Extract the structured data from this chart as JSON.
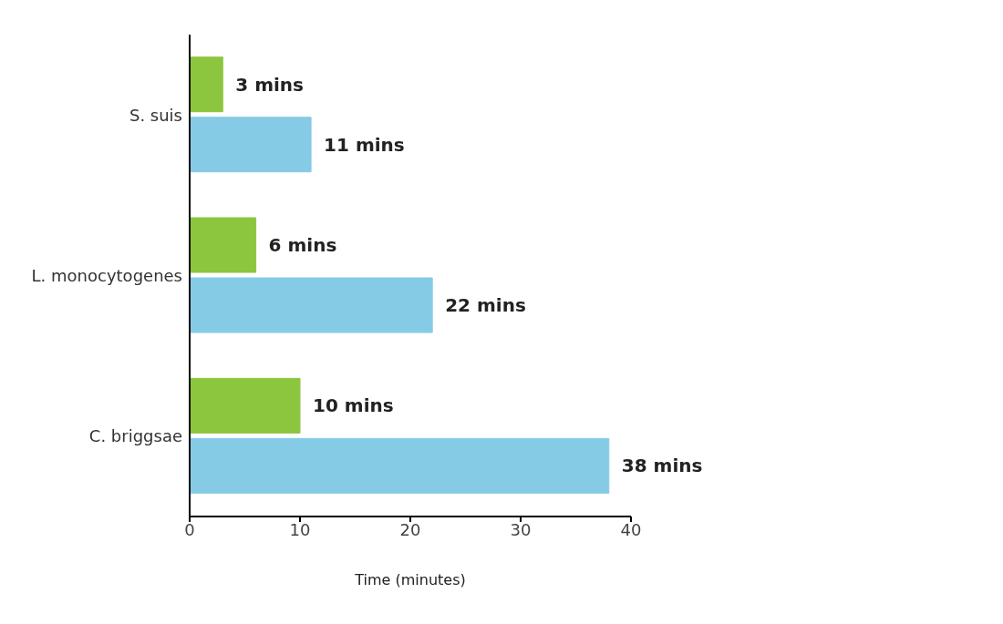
{
  "chart_data": {
    "type": "bar",
    "orientation": "horizontal",
    "xlabel": "Time (minutes)",
    "categories": [
      "S. suis",
      "L. monocytogenes",
      "C. briggsae"
    ],
    "series": [
      {
        "color": "#8cc63e",
        "values": [
          3,
          6,
          10
        ],
        "value_labels": [
          "3 mins",
          "6 mins",
          "10 mins"
        ]
      },
      {
        "color": "#86cbe6",
        "values": [
          11,
          22,
          38
        ],
        "value_labels": [
          "11 mins",
          "22 mins",
          "38 mins"
        ]
      }
    ],
    "xlim": [
      0,
      40
    ],
    "xticks": [
      0,
      10,
      20,
      30,
      40
    ],
    "grid": false,
    "legend": false
  }
}
